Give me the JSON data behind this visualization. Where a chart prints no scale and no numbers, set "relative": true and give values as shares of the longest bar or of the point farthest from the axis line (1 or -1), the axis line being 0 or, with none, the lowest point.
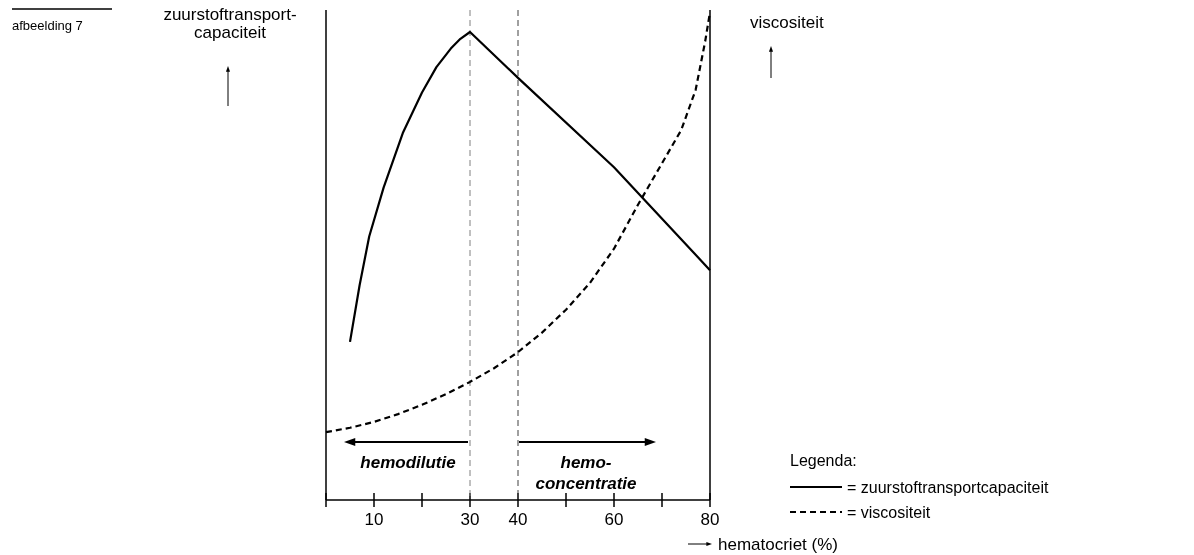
{
  "chart_data": {
    "type": "line",
    "relative": true,
    "xlabel": "hematocriet (%)",
    "ylabel": "zuurstoftransport-capaciteit",
    "y2label": "viscositeit",
    "legend_title": "Legenda:",
    "legend": "bottom right",
    "marker": "none",
    "xlim": [
      0,
      80
    ],
    "xticks": [
      {
        "value": 0,
        "label": null
      },
      10,
      {
        "value": 20,
        "label": null
      },
      30,
      40,
      {
        "value": 50,
        "label": null
      },
      60,
      {
        "value": 70,
        "label": null
      },
      80
    ],
    "ref_lines": [
      {
        "axis": "x",
        "value": 30,
        "color": "#808080",
        "line_style": "dashed"
      },
      {
        "axis": "x",
        "value": 40,
        "color": "#404040",
        "line_style": "dashed"
      }
    ],
    "annotations": [
      "afbeelding 7",
      "hemodilutie",
      "hemo-concentratie"
    ],
    "series": [
      {
        "name": "= zuurstoftransportcapaciteit",
        "color": "#000000",
        "line_style": "solid",
        "x": [
          5,
          7,
          9,
          12,
          16,
          20,
          23,
          26,
          28,
          30,
          40,
          60,
          80
        ],
        "values": [
          0.324,
          0.44,
          0.54,
          0.64,
          0.752,
          0.835,
          0.887,
          0.925,
          0.945,
          0.959,
          0.865,
          0.682,
          0.471
        ]
      },
      {
        "name": "= viscositeit",
        "color": "#000000",
        "line_style": "dashed",
        "x": [
          0,
          5,
          10,
          15,
          20,
          25,
          30,
          35,
          40,
          45,
          50,
          55,
          60,
          65,
          70,
          74,
          77,
          79,
          80
        ],
        "values": [
          0.139,
          0.148,
          0.16,
          0.176,
          0.195,
          0.217,
          0.242,
          0.27,
          0.303,
          0.343,
          0.39,
          0.445,
          0.515,
          0.605,
          0.69,
          0.758,
          0.84,
          0.94,
          1
        ]
      }
    ]
  }
}
